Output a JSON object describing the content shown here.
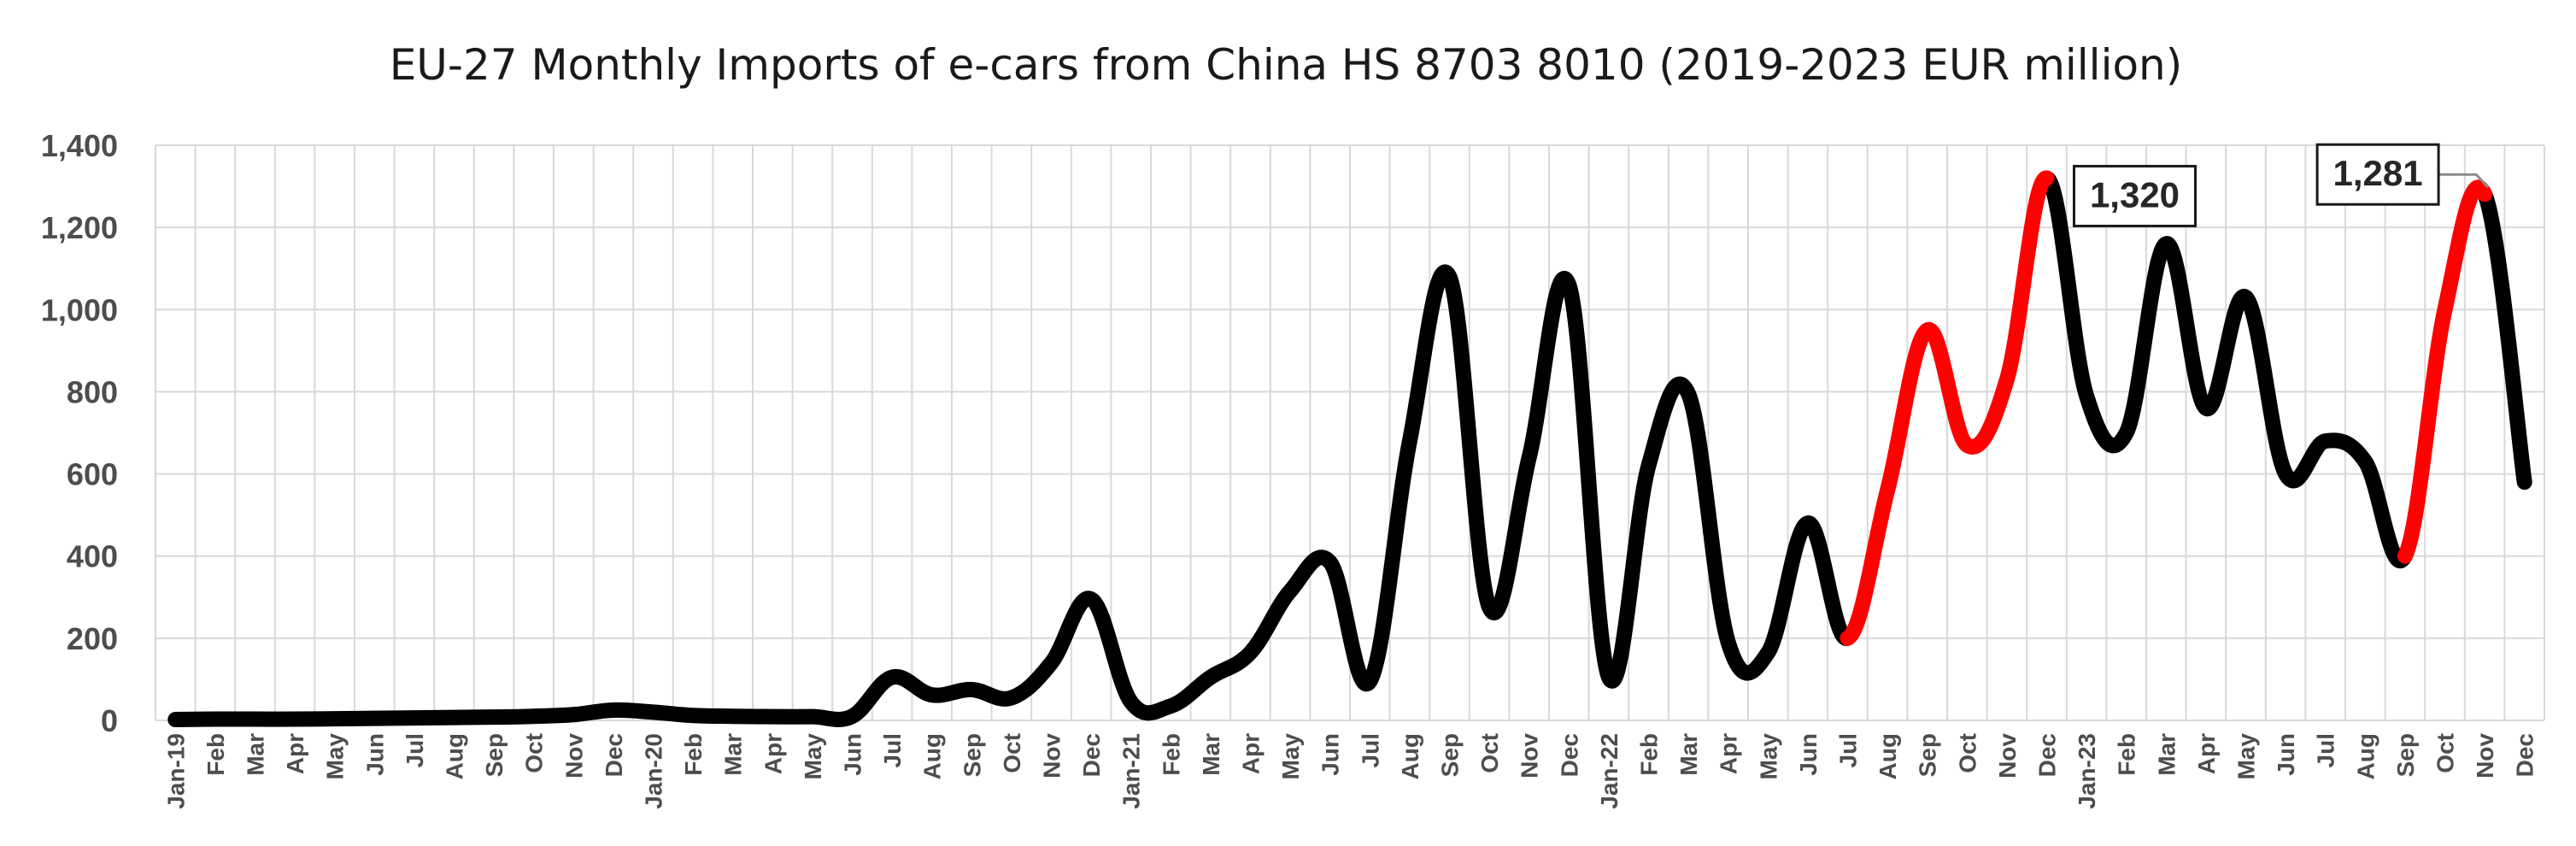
{
  "chart_data": {
    "type": "line",
    "title": "EU-27 Monthly Imports of e-cars from China HS 8703 8010 (2019-2023 EUR million)",
    "xlabel": "",
    "ylabel": "",
    "ylim": [
      0,
      1400
    ],
    "yticks": [
      0,
      200,
      400,
      600,
      800,
      1000,
      1200,
      1400
    ],
    "ytick_labels": [
      "0",
      "200",
      "400",
      "600",
      "800",
      "1,000",
      "1,200",
      "1,400"
    ],
    "grid": true,
    "legend": "none",
    "categories": [
      "Jan-19",
      "Feb",
      "Mar",
      "Apr",
      "May",
      "Jun",
      "Jul",
      "Aug",
      "Sep",
      "Oct",
      "Nov",
      "Dec",
      "Jan-20",
      "Feb",
      "Mar",
      "Apr",
      "May",
      "Jun",
      "Jul",
      "Aug",
      "Sep",
      "Oct",
      "Nov",
      "Dec",
      "Jan-21",
      "Feb",
      "Mar",
      "Apr",
      "May",
      "Jun",
      "Jul",
      "Aug",
      "Sep",
      "Oct",
      "Nov",
      "Dec",
      "Jan-22",
      "Feb",
      "Mar",
      "Apr",
      "May",
      "Jun",
      "Jul",
      "Aug",
      "Sep",
      "Oct",
      "Nov",
      "Dec",
      "Jan-23",
      "Feb",
      "Mar",
      "Apr",
      "May",
      "Jun",
      "Jul",
      "Aug",
      "Sep",
      "Oct",
      "Nov",
      "Dec"
    ],
    "series": [
      {
        "values": [
          2,
          3,
          3,
          3,
          4,
          5,
          6,
          7,
          8,
          10,
          14,
          25,
          20,
          12,
          10,
          9,
          9,
          10,
          105,
          62,
          75,
          55,
          140,
          295,
          45,
          35,
          105,
          165,
          315,
          385,
          95,
          680,
          1080,
          275,
          640,
          1060,
          105,
          620,
          795,
          190,
          165,
          480,
          200,
          560,
          950,
          670,
          830,
          1320,
          790,
          700,
          1160,
          760,
          1030,
          600,
          680,
          630,
          400,
          1000,
          1281,
          580
        ]
      }
    ],
    "highlight_segments": [
      {
        "from": "Jul",
        "to": "Dec",
        "year": 2022
      },
      {
        "from": "Sep",
        "to": "Nov",
        "year": 2023
      }
    ],
    "line_color": "#000000",
    "highlight_color": "#ff0000",
    "annotations": [
      {
        "text": "1,320",
        "category_index": 47,
        "value": 1320
      },
      {
        "text": "1,281",
        "category_index": 58,
        "value": 1281
      }
    ]
  }
}
